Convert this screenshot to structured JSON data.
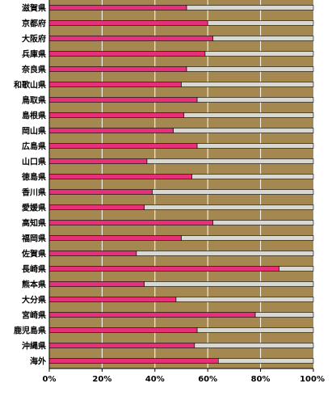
{
  "chart_data": {
    "type": "bar",
    "orientation": "horizontal",
    "stacked": true,
    "categories": [
      "滋賀県",
      "京都府",
      "大阪府",
      "兵庫県",
      "奈良県",
      "和歌山県",
      "鳥取県",
      "島根県",
      "岡山県",
      "広島県",
      "山口県",
      "徳島県",
      "香川県",
      "愛媛県",
      "高知県",
      "福岡県",
      "佐賀県",
      "長崎県",
      "熊本県",
      "大分県",
      "宮崎県",
      "鹿児島県",
      "沖縄県",
      "海外"
    ],
    "series": [
      {
        "color": "#e8307a",
        "values": [
          52,
          60,
          62,
          59,
          52,
          50,
          56,
          51,
          47,
          56,
          37,
          54,
          39,
          36,
          62,
          50,
          33,
          87,
          36,
          48,
          78,
          56,
          55,
          64
        ]
      },
      {
        "color": "#d8d8d0",
        "values": [
          48,
          40,
          38,
          41,
          48,
          50,
          44,
          49,
          53,
          44,
          63,
          46,
          61,
          64,
          38,
          50,
          67,
          13,
          64,
          52,
          22,
          44,
          45,
          36
        ]
      }
    ],
    "xlim": [
      0,
      100
    ],
    "xticks": [
      0,
      20,
      40,
      60,
      80,
      100
    ],
    "xtick_labels": [
      "0%",
      "20%",
      "40%",
      "60%",
      "80%",
      "100%"
    ],
    "grid": true,
    "plot_background": "#a58850",
    "gridline_color": "#ffffff",
    "title": "",
    "xlabel": "",
    "ylabel": ""
  }
}
